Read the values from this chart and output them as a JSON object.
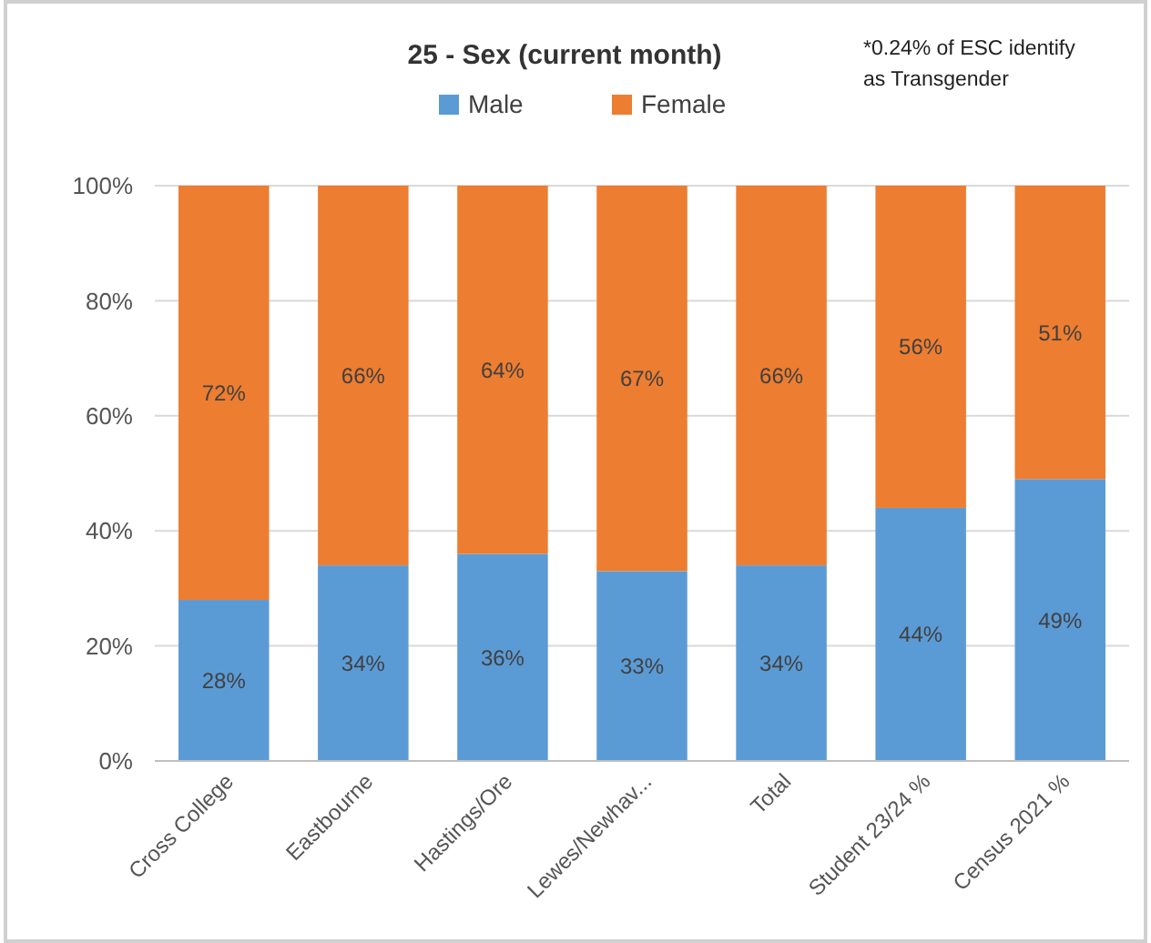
{
  "chart_data": {
    "type": "bar",
    "stacked": true,
    "title": "25 - Sex (current month)",
    "annotations": [
      "*0.24% of ESC identify as Transgender"
    ],
    "categories": [
      "Cross College",
      "Eastbourne",
      "Hastings/Ore",
      "Lewes/Newhav...",
      "Total",
      "Student 23/24 %",
      "Census 2021 %"
    ],
    "series": [
      {
        "name": "Male",
        "color": "#5b9bd5",
        "values": [
          28,
          34,
          36,
          33,
          34,
          44,
          49
        ],
        "value_labels": [
          "28%",
          "34%",
          "36%",
          "33%",
          "34%",
          "44%",
          "49%"
        ]
      },
      {
        "name": "Female",
        "color": "#ed7d31",
        "values": [
          72,
          66,
          64,
          67,
          66,
          56,
          51
        ],
        "value_labels": [
          "72%",
          "66%",
          "64%",
          "67%",
          "66%",
          "56%",
          "51%"
        ]
      }
    ],
    "ylim": [
      0,
      100
    ],
    "yticks": [
      {
        "value": 0,
        "label": "0%"
      },
      {
        "value": 20,
        "label": "20%"
      },
      {
        "value": 40,
        "label": "40%"
      },
      {
        "value": 60,
        "label": "60%"
      },
      {
        "value": 80,
        "label": "80%"
      },
      {
        "value": 100,
        "label": "100%"
      }
    ],
    "grid": "y",
    "legend": "top"
  }
}
